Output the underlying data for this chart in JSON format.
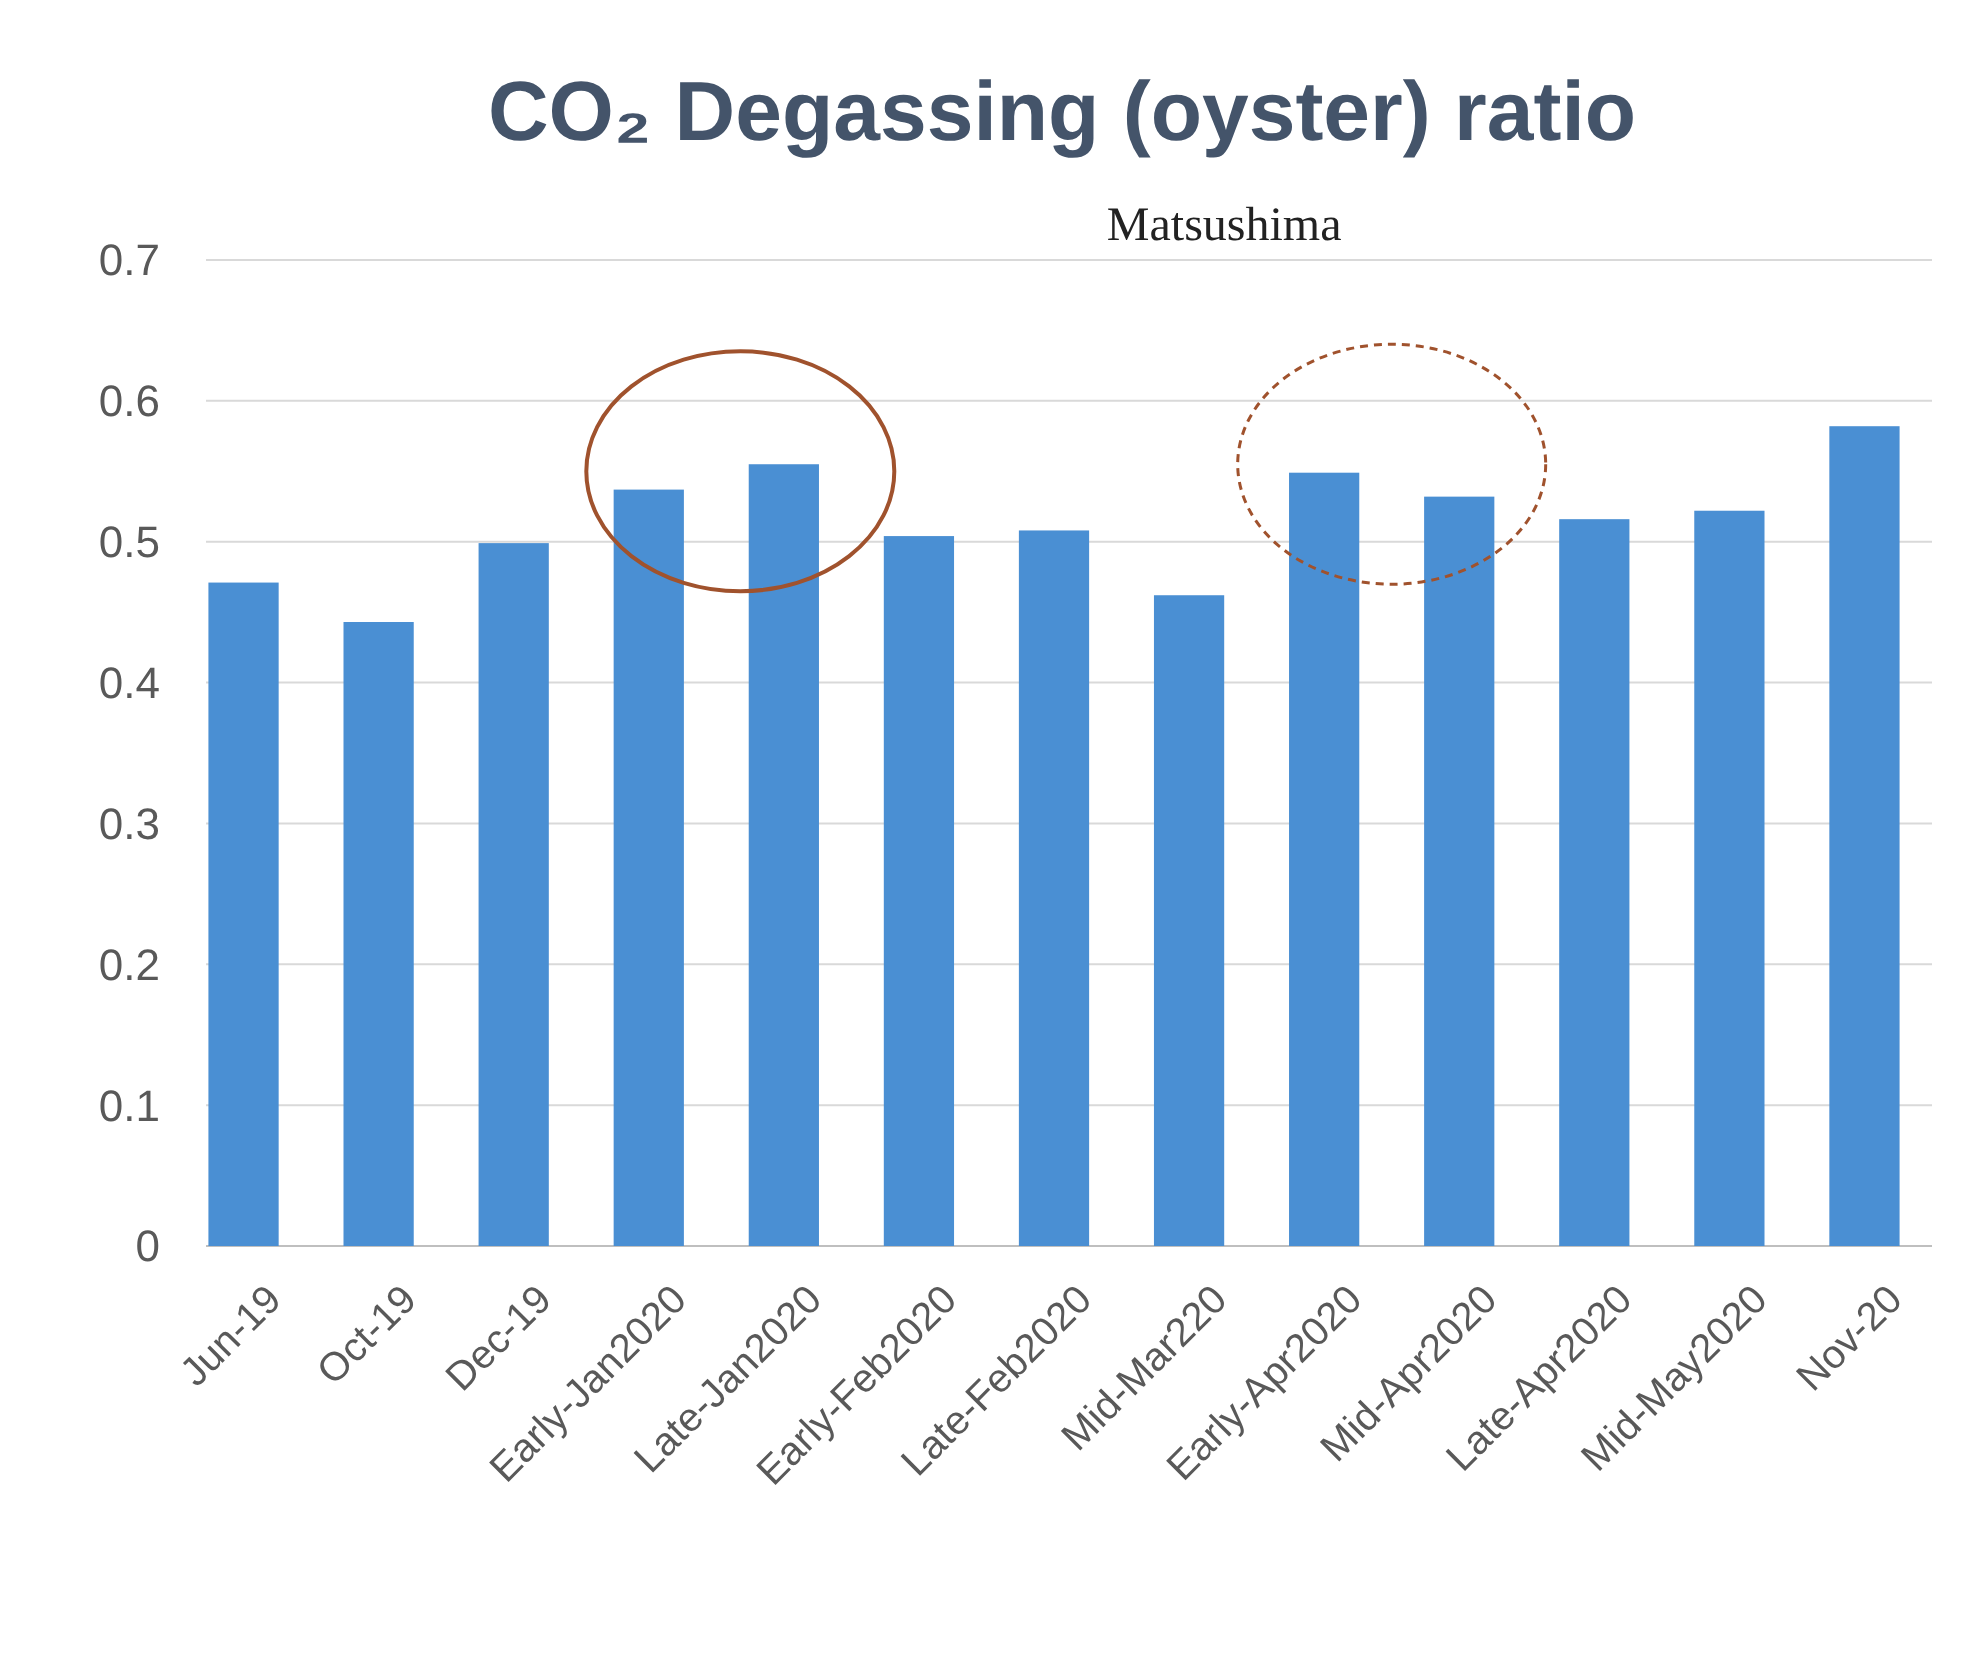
{
  "chart_data": {
    "type": "bar",
    "title": "CO₂ Degassing (oyster) ratio",
    "annotations": [
      "Matsushima"
    ],
    "categories": [
      "Jun-19",
      "Oct-19",
      "Dec-19",
      "Early-Jan2020",
      "Late-Jan2020",
      "Early-Feb2020",
      "Late-Feb2020",
      "Mid-Mar220",
      "Early-Apr2020",
      "Mid-Apr2020",
      "Late-Apr2020",
      "Mid-May2020",
      "Nov-20"
    ],
    "values": [
      0.471,
      0.443,
      0.499,
      0.537,
      0.555,
      0.504,
      0.508,
      0.462,
      0.549,
      0.532,
      0.516,
      0.522,
      0.582
    ],
    "color": "#4a8fd3",
    "ylim": [
      0,
      0.7
    ],
    "yticks": [
      0,
      0.1,
      0.2,
      0.3,
      0.4,
      0.5,
      0.6,
      0.7
    ],
    "grid": "y"
  }
}
